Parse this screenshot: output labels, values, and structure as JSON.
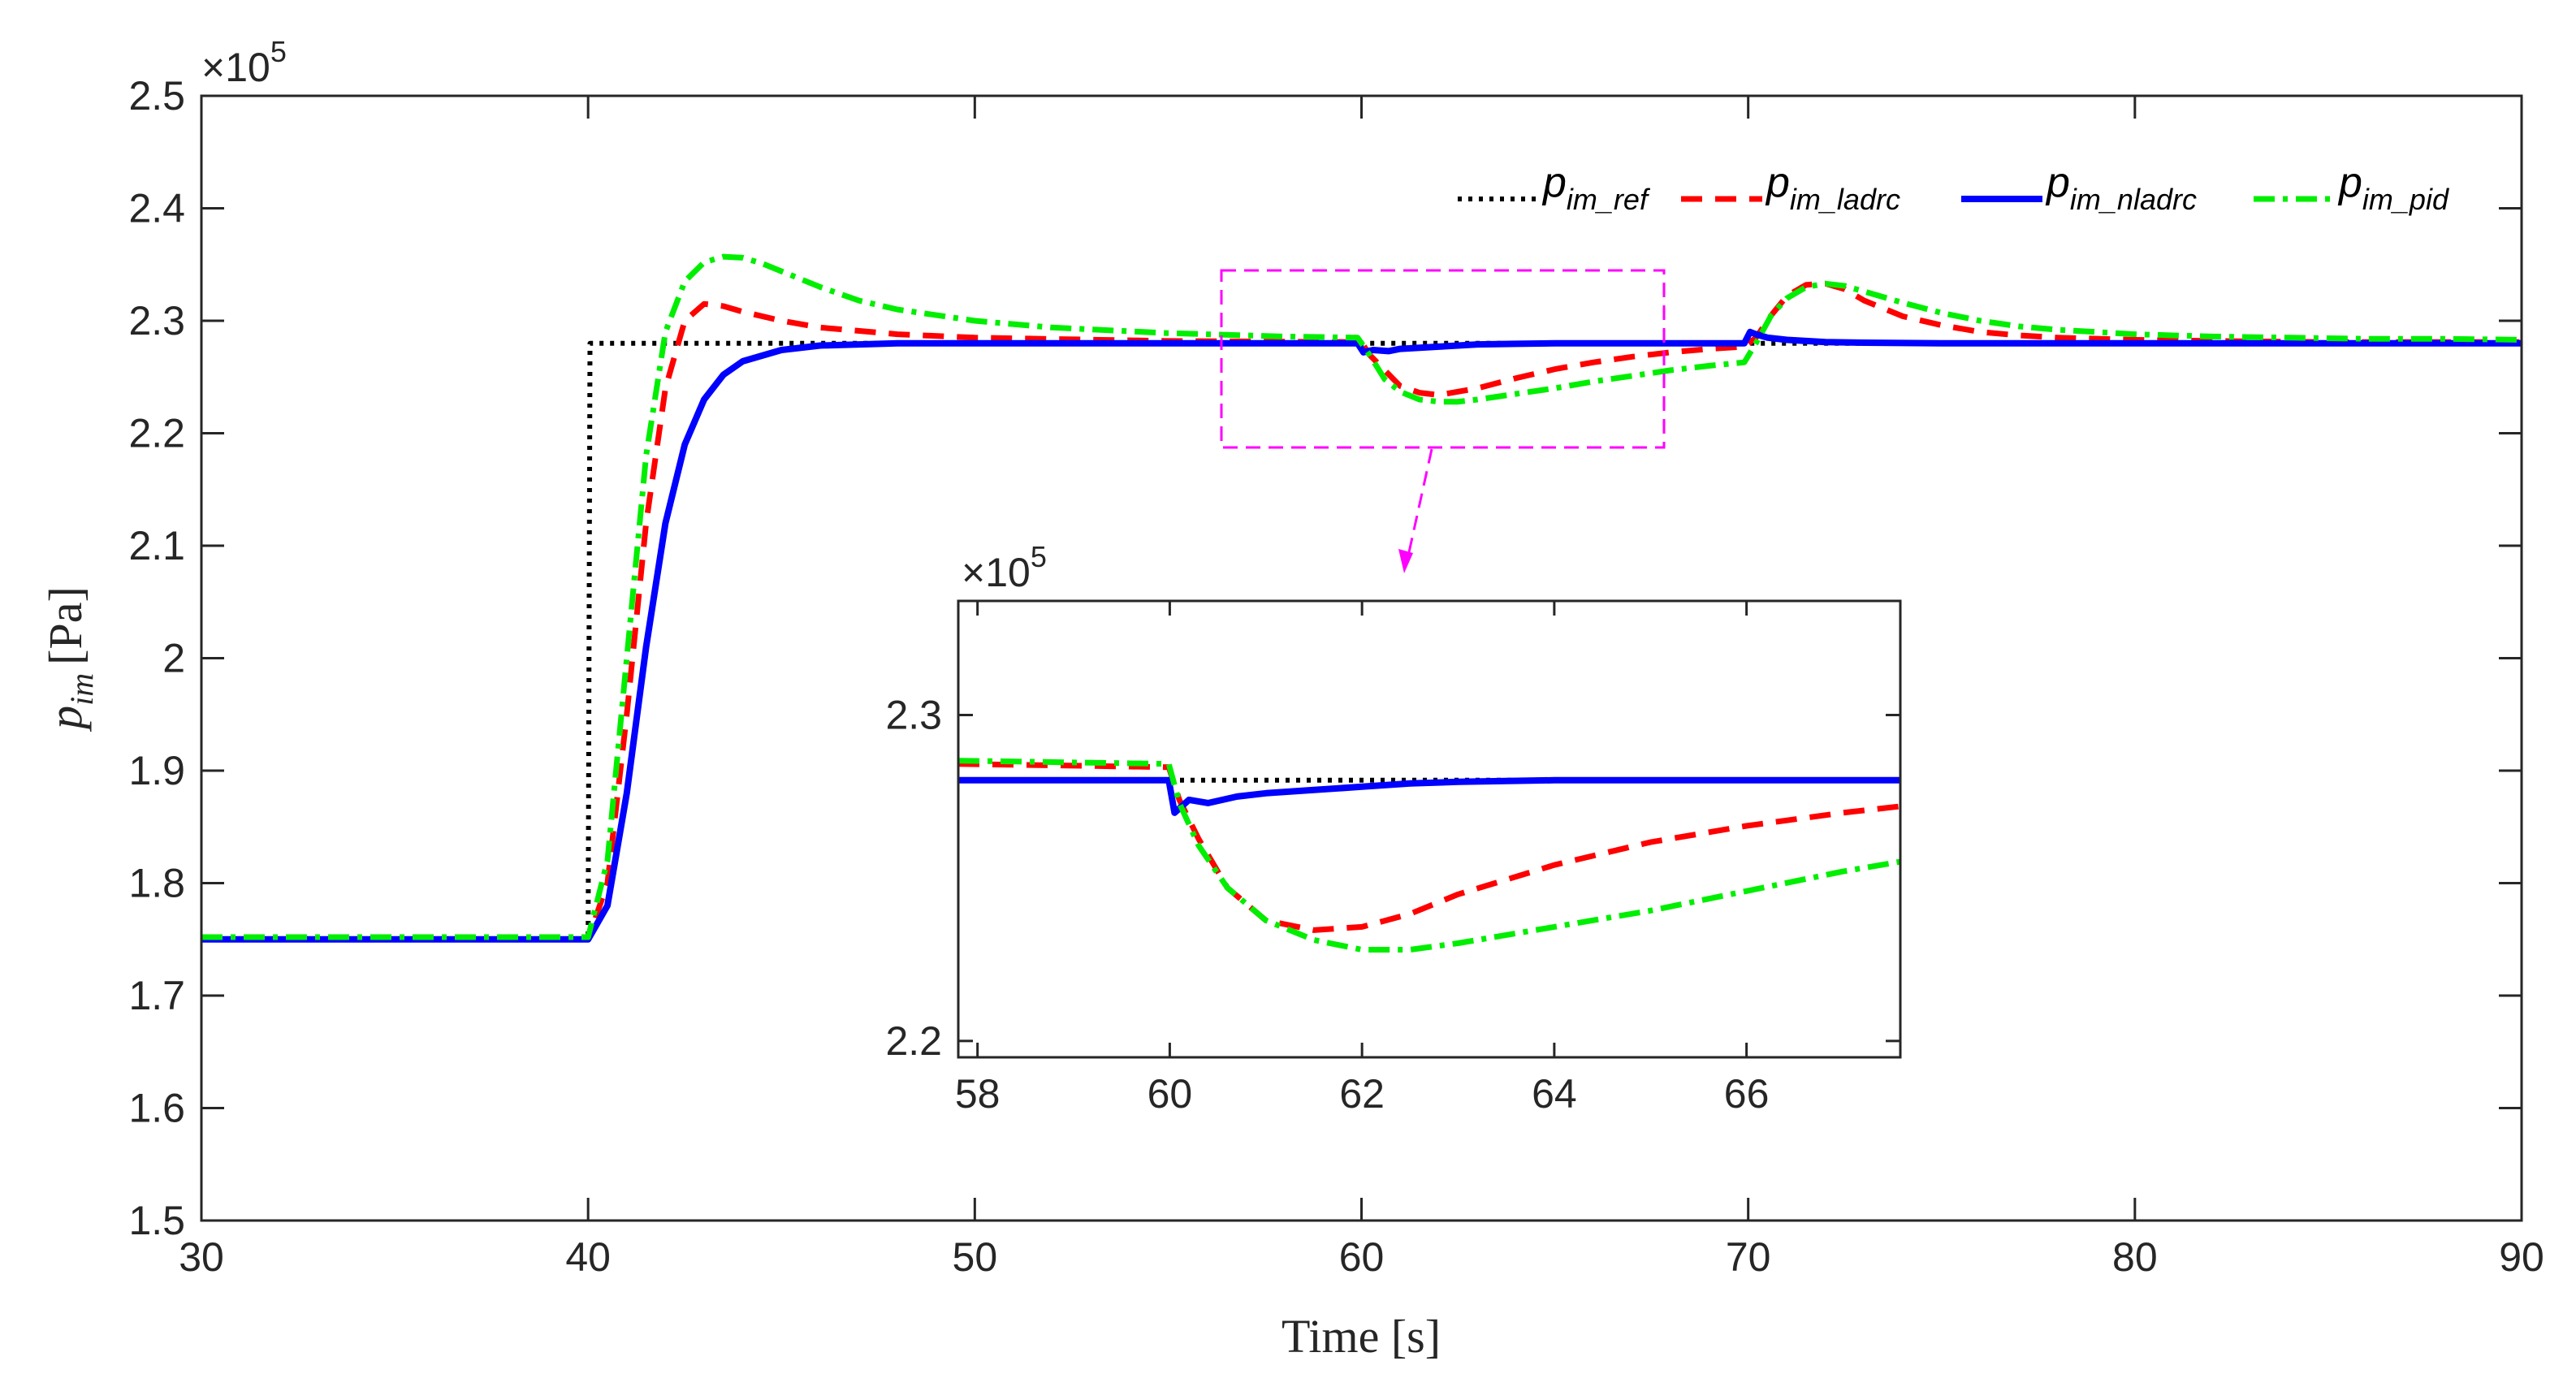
{
  "chart_data": [
    {
      "type": "line",
      "name": "main",
      "xlabel": "Time [s]",
      "ylabel": "p",
      "ylabel_sub": "im",
      "ylabel_unit": "[Pa]",
      "y_exponent_label": "×10",
      "y_exponent_power": "5",
      "xlim": [
        30,
        90
      ],
      "ylim": [
        1.5,
        2.5
      ],
      "xticks": [
        30,
        40,
        50,
        60,
        70,
        80,
        90
      ],
      "yticks": [
        1.5,
        1.6,
        1.7,
        1.8,
        1.9,
        2,
        2.1,
        2.2,
        2.3,
        2.4,
        2.5
      ],
      "xtick_labels": [
        "30",
        "40",
        "50",
        "60",
        "70",
        "80",
        "90"
      ],
      "ytick_labels": [
        "1.5",
        "1.6",
        "1.7",
        "1.8",
        "1.9",
        "2",
        "2.1",
        "2.2",
        "2.3",
        "2.4",
        "2.5"
      ],
      "legend_position": "top-right",
      "series": [
        {
          "name": "p",
          "sub": "im_ref",
          "color": "#000000",
          "style": "dotted",
          "x": [
            30,
            40,
            40.05,
            90
          ],
          "y": [
            1.75,
            1.75,
            2.28,
            2.28
          ]
        },
        {
          "name": "p",
          "sub": "im_ladrc",
          "color": "#ff0000",
          "style": "dashed",
          "x": [
            30,
            40,
            40.5,
            41,
            41.5,
            42,
            42.5,
            43,
            43.5,
            44,
            45,
            46,
            48,
            50,
            55,
            60,
            60.2,
            61,
            61.5,
            62,
            63,
            64,
            65,
            66,
            67,
            68,
            69,
            69.9,
            70.2,
            70.6,
            71,
            71.5,
            72,
            72.5,
            73,
            74,
            75,
            76,
            77,
            78,
            80,
            82,
            85,
            90
          ],
          "y": [
            1.75,
            1.75,
            1.8,
            1.95,
            2.12,
            2.24,
            2.3,
            2.315,
            2.313,
            2.308,
            2.3,
            2.294,
            2.288,
            2.285,
            2.282,
            2.281,
            2.27,
            2.242,
            2.236,
            2.234,
            2.24,
            2.249,
            2.257,
            2.263,
            2.268,
            2.272,
            2.275,
            2.277,
            2.285,
            2.305,
            2.322,
            2.332,
            2.333,
            2.328,
            2.318,
            2.304,
            2.296,
            2.29,
            2.287,
            2.285,
            2.283,
            2.282,
            2.281,
            2.281
          ]
        },
        {
          "name": "p",
          "sub": "im_nladrc",
          "color": "#0000ff",
          "style": "solid",
          "x": [
            30,
            40,
            40.5,
            41,
            41.5,
            42,
            42.5,
            43,
            43.5,
            44,
            45,
            46,
            48,
            50,
            55,
            59.9,
            60.05,
            60.3,
            60.7,
            61,
            62,
            63,
            64,
            65,
            66,
            67,
            69.9,
            70.05,
            70.2,
            70.5,
            71,
            72,
            73,
            75,
            90
          ],
          "y": [
            1.75,
            1.75,
            1.78,
            1.88,
            2.01,
            2.12,
            2.19,
            2.23,
            2.252,
            2.264,
            2.274,
            2.278,
            2.28,
            2.28,
            2.28,
            2.28,
            2.272,
            2.274,
            2.273,
            2.275,
            2.277,
            2.279,
            2.2795,
            2.28,
            2.28,
            2.28,
            2.28,
            2.29,
            2.288,
            2.285,
            2.283,
            2.281,
            2.2805,
            2.28,
            2.28
          ]
        },
        {
          "name": "p",
          "sub": "im_pid",
          "color": "#00ee00",
          "style": "dashdot",
          "x": [
            30,
            40,
            40.5,
            41,
            41.5,
            42,
            42.5,
            43,
            43.5,
            44,
            44.5,
            45,
            46,
            47,
            48,
            50,
            52,
            55,
            58,
            59.9,
            60.2,
            60.6,
            61,
            61.5,
            62,
            62.5,
            63,
            64,
            65,
            66,
            67,
            68,
            69,
            69.9,
            70.2,
            70.6,
            71,
            71.5,
            72,
            72.5,
            73,
            74,
            75,
            76,
            77,
            78,
            79,
            80,
            82,
            84,
            86,
            88,
            90
          ],
          "y": [
            1.752,
            1.752,
            1.82,
            2.0,
            2.18,
            2.29,
            2.335,
            2.352,
            2.357,
            2.356,
            2.351,
            2.344,
            2.33,
            2.318,
            2.31,
            2.3,
            2.294,
            2.289,
            2.286,
            2.285,
            2.27,
            2.248,
            2.237,
            2.23,
            2.228,
            2.228,
            2.23,
            2.235,
            2.24,
            2.246,
            2.251,
            2.256,
            2.26,
            2.263,
            2.28,
            2.305,
            2.32,
            2.33,
            2.333,
            2.331,
            2.326,
            2.316,
            2.307,
            2.3,
            2.295,
            2.292,
            2.29,
            2.288,
            2.286,
            2.285,
            2.284,
            2.284,
            2.283
          ]
        }
      ]
    },
    {
      "type": "line",
      "name": "inset",
      "y_exponent_label": "×10",
      "y_exponent_power": "5",
      "xlim": [
        57.8,
        67.6
      ],
      "ylim": [
        2.195,
        2.335
      ],
      "xticks": [
        58,
        60,
        62,
        64,
        66
      ],
      "yticks": [
        2.2,
        2.3
      ],
      "xtick_labels": [
        "58",
        "60",
        "62",
        "64",
        "66"
      ],
      "ytick_labels": [
        "2.2",
        "2.3"
      ],
      "series": [
        {
          "name": "p",
          "sub": "im_ref",
          "color": "#000000",
          "style": "dotted",
          "x": [
            57.8,
            67.6
          ],
          "y": [
            2.28,
            2.28
          ]
        },
        {
          "name": "p",
          "sub": "im_ladrc",
          "color": "#ff0000",
          "style": "dashed",
          "x": [
            57.8,
            59.99,
            60.1,
            60.3,
            60.6,
            61,
            61.5,
            62,
            62.5,
            63,
            64,
            65,
            66,
            67,
            67.6
          ],
          "y": [
            2.285,
            2.284,
            2.274,
            2.262,
            2.247,
            2.237,
            2.234,
            2.235,
            2.239,
            2.245,
            2.254,
            2.261,
            2.266,
            2.27,
            2.272
          ]
        },
        {
          "name": "p",
          "sub": "im_nladrc",
          "color": "#0000ff",
          "style": "solid",
          "x": [
            57.8,
            59.99,
            60.05,
            60.2,
            60.4,
            60.7,
            61,
            61.5,
            62,
            62.5,
            63,
            64,
            65,
            66,
            67.6
          ],
          "y": [
            2.28,
            2.28,
            2.27,
            2.274,
            2.273,
            2.275,
            2.276,
            2.277,
            2.278,
            2.279,
            2.2795,
            2.28,
            2.28,
            2.28,
            2.28
          ]
        },
        {
          "name": "p",
          "sub": "im_pid",
          "color": "#00ee00",
          "style": "dashdot",
          "x": [
            57.8,
            59.99,
            60.1,
            60.3,
            60.6,
            61,
            61.5,
            62,
            62.5,
            63,
            64,
            65,
            66,
            67,
            67.6
          ],
          "y": [
            2.286,
            2.285,
            2.273,
            2.26,
            2.247,
            2.237,
            2.231,
            2.228,
            2.228,
            2.23,
            2.235,
            2.24,
            2.246,
            2.252,
            2.255
          ]
        }
      ]
    }
  ]
}
